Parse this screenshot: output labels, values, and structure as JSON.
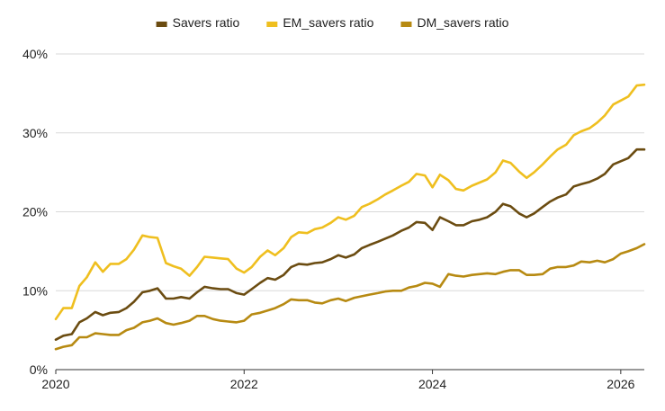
{
  "chart_data": {
    "type": "line",
    "title": "",
    "xlabel": "",
    "ylabel": "",
    "xlim": [
      2020.0,
      2026.25
    ],
    "ylim": [
      0,
      40
    ],
    "grid": true,
    "legend_position": "top-center",
    "x_ticks": [
      {
        "value": 2020,
        "label": "2020"
      },
      {
        "value": 2022,
        "label": "2022"
      },
      {
        "value": 2024,
        "label": "2024"
      },
      {
        "value": 2026,
        "label": "2026"
      }
    ],
    "y_ticks": [
      {
        "value": 0,
        "label": "0%"
      },
      {
        "value": 10,
        "label": "10%"
      },
      {
        "value": 20,
        "label": "20%"
      },
      {
        "value": 30,
        "label": "30%"
      },
      {
        "value": 40,
        "label": "40%"
      }
    ],
    "series": [
      {
        "name": "Savers ratio",
        "color": "#6b4c11",
        "points": [
          [
            2020.0,
            3.8
          ],
          [
            2020.08,
            4.3
          ],
          [
            2020.17,
            4.5
          ],
          [
            2020.25,
            6.0
          ],
          [
            2020.33,
            6.5
          ],
          [
            2020.42,
            7.3
          ],
          [
            2020.5,
            6.9
          ],
          [
            2020.58,
            7.2
          ],
          [
            2020.67,
            7.3
          ],
          [
            2020.75,
            7.8
          ],
          [
            2020.83,
            8.6
          ],
          [
            2020.92,
            9.8
          ],
          [
            2021.0,
            10.0
          ],
          [
            2021.08,
            10.3
          ],
          [
            2021.17,
            9.0
          ],
          [
            2021.25,
            9.0
          ],
          [
            2021.33,
            9.2
          ],
          [
            2021.42,
            9.0
          ],
          [
            2021.5,
            9.8
          ],
          [
            2021.58,
            10.5
          ],
          [
            2021.67,
            10.3
          ],
          [
            2021.75,
            10.2
          ],
          [
            2021.83,
            10.2
          ],
          [
            2021.92,
            9.7
          ],
          [
            2022.0,
            9.5
          ],
          [
            2022.08,
            10.2
          ],
          [
            2022.17,
            11.0
          ],
          [
            2022.25,
            11.6
          ],
          [
            2022.33,
            11.4
          ],
          [
            2022.42,
            12.0
          ],
          [
            2022.5,
            13.0
          ],
          [
            2022.58,
            13.4
          ],
          [
            2022.67,
            13.3
          ],
          [
            2022.75,
            13.5
          ],
          [
            2022.83,
            13.6
          ],
          [
            2022.92,
            14.0
          ],
          [
            2023.0,
            14.5
          ],
          [
            2023.08,
            14.2
          ],
          [
            2023.17,
            14.6
          ],
          [
            2023.25,
            15.4
          ],
          [
            2023.33,
            15.8
          ],
          [
            2023.42,
            16.2
          ],
          [
            2023.5,
            16.6
          ],
          [
            2023.58,
            17.0
          ],
          [
            2023.67,
            17.6
          ],
          [
            2023.75,
            18.0
          ],
          [
            2023.83,
            18.7
          ],
          [
            2023.92,
            18.6
          ],
          [
            2024.0,
            17.7
          ],
          [
            2024.08,
            19.3
          ],
          [
            2024.17,
            18.8
          ],
          [
            2024.25,
            18.3
          ],
          [
            2024.33,
            18.3
          ],
          [
            2024.42,
            18.8
          ],
          [
            2024.5,
            19.0
          ],
          [
            2024.58,
            19.3
          ],
          [
            2024.67,
            20.0
          ],
          [
            2024.75,
            21.0
          ],
          [
            2024.83,
            20.7
          ],
          [
            2024.92,
            19.8
          ],
          [
            2025.0,
            19.3
          ],
          [
            2025.08,
            19.8
          ],
          [
            2025.17,
            20.6
          ],
          [
            2025.25,
            21.3
          ],
          [
            2025.33,
            21.8
          ],
          [
            2025.42,
            22.2
          ],
          [
            2025.5,
            23.2
          ],
          [
            2025.58,
            23.5
          ],
          [
            2025.67,
            23.8
          ],
          [
            2025.75,
            24.2
          ],
          [
            2025.83,
            24.8
          ],
          [
            2025.92,
            26.0
          ],
          [
            2026.0,
            26.4
          ],
          [
            2026.08,
            26.8
          ],
          [
            2026.17,
            27.9
          ],
          [
            2026.25,
            27.9
          ]
        ]
      },
      {
        "name": "EM_savers ratio",
        "color": "#efbf1f",
        "points": [
          [
            2020.0,
            6.4
          ],
          [
            2020.08,
            7.8
          ],
          [
            2020.17,
            7.8
          ],
          [
            2020.25,
            10.6
          ],
          [
            2020.33,
            11.7
          ],
          [
            2020.42,
            13.6
          ],
          [
            2020.5,
            12.4
          ],
          [
            2020.58,
            13.4
          ],
          [
            2020.67,
            13.4
          ],
          [
            2020.75,
            14.0
          ],
          [
            2020.83,
            15.2
          ],
          [
            2020.92,
            17.0
          ],
          [
            2021.0,
            16.8
          ],
          [
            2021.08,
            16.7
          ],
          [
            2021.17,
            13.5
          ],
          [
            2021.25,
            13.1
          ],
          [
            2021.33,
            12.8
          ],
          [
            2021.42,
            11.9
          ],
          [
            2021.5,
            13.0
          ],
          [
            2021.58,
            14.3
          ],
          [
            2021.67,
            14.2
          ],
          [
            2021.75,
            14.1
          ],
          [
            2021.83,
            14.0
          ],
          [
            2021.92,
            12.8
          ],
          [
            2022.0,
            12.3
          ],
          [
            2022.08,
            13.0
          ],
          [
            2022.17,
            14.3
          ],
          [
            2022.25,
            15.1
          ],
          [
            2022.33,
            14.5
          ],
          [
            2022.42,
            15.4
          ],
          [
            2022.5,
            16.8
          ],
          [
            2022.58,
            17.4
          ],
          [
            2022.67,
            17.3
          ],
          [
            2022.75,
            17.8
          ],
          [
            2022.83,
            18.0
          ],
          [
            2022.92,
            18.6
          ],
          [
            2023.0,
            19.3
          ],
          [
            2023.08,
            19.0
          ],
          [
            2023.17,
            19.5
          ],
          [
            2023.25,
            20.6
          ],
          [
            2023.33,
            21.0
          ],
          [
            2023.42,
            21.6
          ],
          [
            2023.5,
            22.2
          ],
          [
            2023.58,
            22.7
          ],
          [
            2023.67,
            23.3
          ],
          [
            2023.75,
            23.8
          ],
          [
            2023.83,
            24.8
          ],
          [
            2023.92,
            24.6
          ],
          [
            2024.0,
            23.1
          ],
          [
            2024.08,
            24.7
          ],
          [
            2024.17,
            24.0
          ],
          [
            2024.25,
            22.9
          ],
          [
            2024.33,
            22.7
          ],
          [
            2024.42,
            23.3
          ],
          [
            2024.5,
            23.7
          ],
          [
            2024.58,
            24.1
          ],
          [
            2024.67,
            25.0
          ],
          [
            2024.75,
            26.5
          ],
          [
            2024.83,
            26.2
          ],
          [
            2024.92,
            25.1
          ],
          [
            2025.0,
            24.3
          ],
          [
            2025.08,
            25.0
          ],
          [
            2025.17,
            26.0
          ],
          [
            2025.25,
            27.0
          ],
          [
            2025.33,
            27.9
          ],
          [
            2025.42,
            28.5
          ],
          [
            2025.5,
            29.7
          ],
          [
            2025.58,
            30.2
          ],
          [
            2025.67,
            30.6
          ],
          [
            2025.75,
            31.3
          ],
          [
            2025.83,
            32.2
          ],
          [
            2025.92,
            33.6
          ],
          [
            2026.0,
            34.1
          ],
          [
            2026.08,
            34.6
          ],
          [
            2026.17,
            36.0
          ],
          [
            2026.25,
            36.1
          ]
        ]
      },
      {
        "name": "DM_savers ratio",
        "color": "#b78a12",
        "points": [
          [
            2020.0,
            2.6
          ],
          [
            2020.08,
            2.9
          ],
          [
            2020.17,
            3.1
          ],
          [
            2020.25,
            4.1
          ],
          [
            2020.33,
            4.1
          ],
          [
            2020.42,
            4.6
          ],
          [
            2020.5,
            4.5
          ],
          [
            2020.58,
            4.4
          ],
          [
            2020.67,
            4.4
          ],
          [
            2020.75,
            5.0
          ],
          [
            2020.83,
            5.3
          ],
          [
            2020.92,
            6.0
          ],
          [
            2021.0,
            6.2
          ],
          [
            2021.08,
            6.5
          ],
          [
            2021.17,
            5.9
          ],
          [
            2021.25,
            5.7
          ],
          [
            2021.33,
            5.9
          ],
          [
            2021.42,
            6.2
          ],
          [
            2021.5,
            6.8
          ],
          [
            2021.58,
            6.8
          ],
          [
            2021.67,
            6.4
          ],
          [
            2021.75,
            6.2
          ],
          [
            2021.83,
            6.1
          ],
          [
            2021.92,
            6.0
          ],
          [
            2022.0,
            6.2
          ],
          [
            2022.08,
            7.0
          ],
          [
            2022.17,
            7.2
          ],
          [
            2022.25,
            7.5
          ],
          [
            2022.33,
            7.8
          ],
          [
            2022.42,
            8.3
          ],
          [
            2022.5,
            8.9
          ],
          [
            2022.58,
            8.8
          ],
          [
            2022.67,
            8.8
          ],
          [
            2022.75,
            8.5
          ],
          [
            2022.83,
            8.4
          ],
          [
            2022.92,
            8.8
          ],
          [
            2023.0,
            9.0
          ],
          [
            2023.08,
            8.7
          ],
          [
            2023.17,
            9.1
          ],
          [
            2023.25,
            9.3
          ],
          [
            2023.33,
            9.5
          ],
          [
            2023.42,
            9.7
          ],
          [
            2023.5,
            9.9
          ],
          [
            2023.58,
            10.0
          ],
          [
            2023.67,
            10.0
          ],
          [
            2023.75,
            10.4
          ],
          [
            2023.83,
            10.6
          ],
          [
            2023.92,
            11.0
          ],
          [
            2024.0,
            10.9
          ],
          [
            2024.08,
            10.5
          ],
          [
            2024.17,
            12.1
          ],
          [
            2024.25,
            11.9
          ],
          [
            2024.33,
            11.8
          ],
          [
            2024.42,
            12.0
          ],
          [
            2024.5,
            12.1
          ],
          [
            2024.58,
            12.2
          ],
          [
            2024.67,
            12.1
          ],
          [
            2024.75,
            12.4
          ],
          [
            2024.83,
            12.6
          ],
          [
            2024.92,
            12.6
          ],
          [
            2025.0,
            12.0
          ],
          [
            2025.08,
            12.0
          ],
          [
            2025.17,
            12.1
          ],
          [
            2025.25,
            12.8
          ],
          [
            2025.33,
            13.0
          ],
          [
            2025.42,
            13.0
          ],
          [
            2025.5,
            13.2
          ],
          [
            2025.58,
            13.7
          ],
          [
            2025.67,
            13.6
          ],
          [
            2025.75,
            13.8
          ],
          [
            2025.83,
            13.6
          ],
          [
            2025.92,
            14.0
          ],
          [
            2026.0,
            14.7
          ],
          [
            2026.08,
            15.0
          ],
          [
            2026.17,
            15.4
          ],
          [
            2026.25,
            15.9
          ]
        ]
      }
    ]
  }
}
